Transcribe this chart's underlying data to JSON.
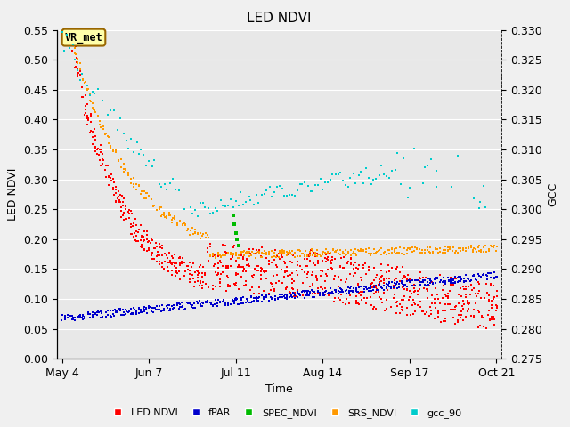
{
  "title": "LED NDVI",
  "xlabel": "Time",
  "ylabel_left": "LED NDVI",
  "ylabel_right": "GCC",
  "ylim_left": [
    0.0,
    0.55
  ],
  "ylim_right": [
    0.275,
    0.33
  ],
  "yticks_left": [
    0.0,
    0.05,
    0.1,
    0.15,
    0.2,
    0.25,
    0.3,
    0.35,
    0.4,
    0.45,
    0.5,
    0.55
  ],
  "yticks_right": [
    0.275,
    0.28,
    0.285,
    0.29,
    0.295,
    0.3,
    0.305,
    0.31,
    0.315,
    0.32,
    0.325,
    0.33
  ],
  "xtick_labels": [
    "May 4",
    "Jun 7",
    "Jul 11",
    "Aug 14",
    "Sep 17",
    "Oct 21"
  ],
  "xtick_positions": [
    0,
    34,
    68,
    102,
    136,
    170
  ],
  "total_days": 170,
  "series_colors": {
    "LED_NDVI": "#ff0000",
    "fPAR": "#0000cc",
    "SPEC_NDVI": "#00bb00",
    "SRS_NDVI": "#ff9900",
    "gcc_90": "#00cccc"
  },
  "legend_labels": [
    "LED NDVI",
    "fPAR",
    "SPEC_NDVI",
    "SRS_NDVI",
    "gcc_90"
  ],
  "legend_colors": [
    "#ff0000",
    "#0000cc",
    "#00bb00",
    "#ff9900",
    "#00cccc"
  ],
  "annotation_label": "VR_met",
  "plot_bg_color": "#e8e8e8",
  "fig_bg_color": "#f0f0f0",
  "grid_color": "#ffffff",
  "title_fontsize": 11,
  "axis_fontsize": 9,
  "tick_fontsize": 9,
  "legend_fontsize": 8
}
